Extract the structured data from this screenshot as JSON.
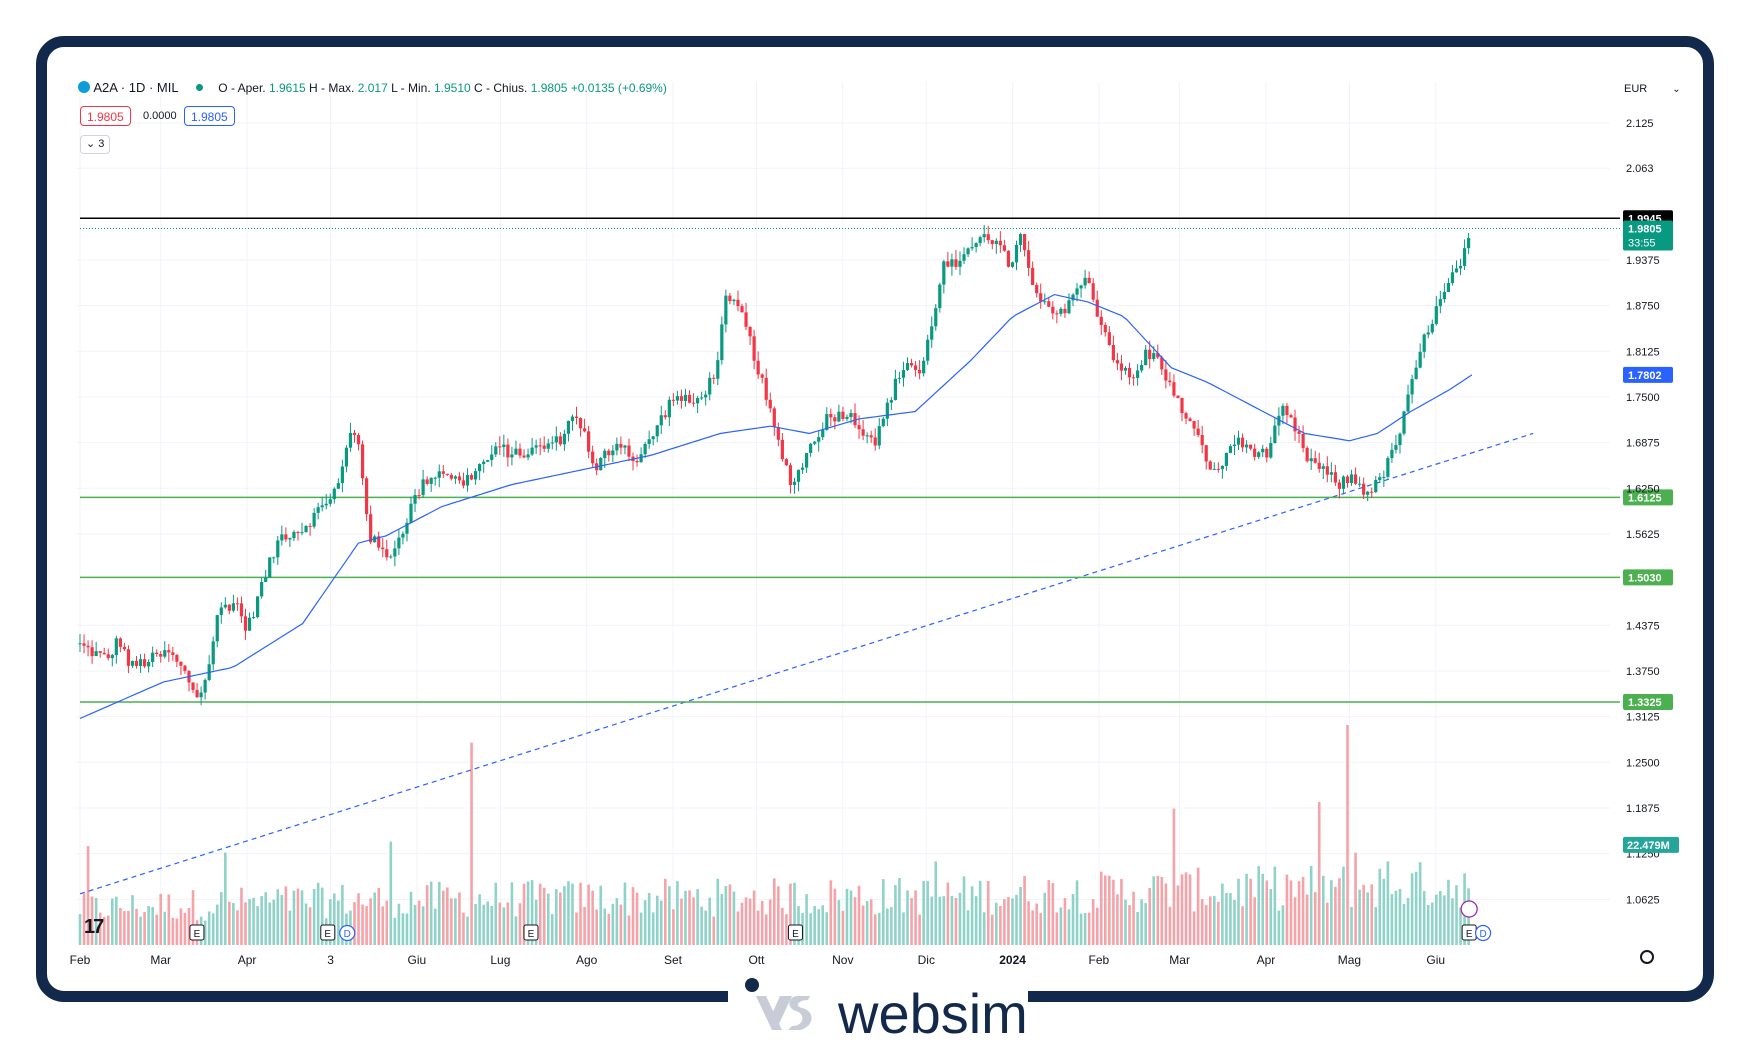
{
  "header": {
    "symbol": "A2A · 1D · MIL",
    "ohlc_prefix_o": "O - Aper.",
    "open": "1.9615",
    "ohlc_prefix_h": "H - Max.",
    "high": "2.017",
    "ohlc_prefix_l": "L - Min.",
    "low": "1.9510",
    "ohlc_prefix_c": "C - Chius.",
    "close": "1.9805",
    "change": "+0.0135 (+0.69%)",
    "bid": "1.9805",
    "spread": "0.0000",
    "ask": "1.9805",
    "indicators_count": "3",
    "currency": "EUR"
  },
  "brand": {
    "name": "websim"
  },
  "chart_data": {
    "type": "candlestick",
    "symbol": "A2A",
    "timeframe": "1D",
    "currency": "EUR",
    "ylim": [
      1.0,
      2.17
    ],
    "y_ticks": [
      "2.125",
      "2.063",
      "1.9375",
      "1.8750",
      "1.8125",
      "1.7500",
      "1.6875",
      "1.6250",
      "1.5625",
      "1.4375",
      "1.3750",
      "1.3125",
      "1.2500",
      "1.1875",
      "1.1250",
      "1.0625"
    ],
    "x_labels": [
      {
        "label": "Feb",
        "day": 0,
        "bold": false
      },
      {
        "label": "Mar",
        "day": 29,
        "bold": false
      },
      {
        "label": "Apr",
        "day": 60,
        "bold": false
      },
      {
        "label": "3",
        "day": 90,
        "bold": false
      },
      {
        "label": "Giu",
        "day": 121,
        "bold": false
      },
      {
        "label": "Lug",
        "day": 151,
        "bold": false
      },
      {
        "label": "Ago",
        "day": 182,
        "bold": false
      },
      {
        "label": "Set",
        "day": 213,
        "bold": false
      },
      {
        "label": "Ott",
        "day": 243,
        "bold": false
      },
      {
        "label": "Nov",
        "day": 274,
        "bold": false
      },
      {
        "label": "Dic",
        "day": 304,
        "bold": false
      },
      {
        "label": "2024",
        "day": 335,
        "bold": true
      },
      {
        "label": "Feb",
        "day": 366,
        "bold": false
      },
      {
        "label": "Mar",
        "day": 395,
        "bold": false
      },
      {
        "label": "Apr",
        "day": 426,
        "bold": false
      },
      {
        "label": "Mag",
        "day": 456,
        "bold": false
      },
      {
        "label": "Giu",
        "day": 487,
        "bold": false
      }
    ],
    "price_path": [
      [
        0,
        1.41
      ],
      [
        10,
        1.39
      ],
      [
        14,
        1.42
      ],
      [
        18,
        1.38
      ],
      [
        25,
        1.39
      ],
      [
        32,
        1.4
      ],
      [
        38,
        1.37
      ],
      [
        42,
        1.34
      ],
      [
        45,
        1.36
      ],
      [
        50,
        1.46
      ],
      [
        56,
        1.47
      ],
      [
        60,
        1.43
      ],
      [
        66,
        1.5
      ],
      [
        72,
        1.56
      ],
      [
        80,
        1.57
      ],
      [
        87,
        1.6
      ],
      [
        93,
        1.63
      ],
      [
        97,
        1.7
      ],
      [
        100,
        1.69
      ],
      [
        104,
        1.56
      ],
      [
        110,
        1.53
      ],
      [
        114,
        1.55
      ],
      [
        120,
        1.61
      ],
      [
        125,
        1.64
      ],
      [
        131,
        1.65
      ],
      [
        137,
        1.63
      ],
      [
        145,
        1.66
      ],
      [
        151,
        1.68
      ],
      [
        157,
        1.67
      ],
      [
        165,
        1.68
      ],
      [
        172,
        1.69
      ],
      [
        178,
        1.73
      ],
      [
        182,
        1.69
      ],
      [
        185,
        1.64
      ],
      [
        188,
        1.67
      ],
      [
        194,
        1.69
      ],
      [
        200,
        1.66
      ],
      [
        206,
        1.7
      ],
      [
        213,
        1.75
      ],
      [
        221,
        1.74
      ],
      [
        228,
        1.78
      ],
      [
        232,
        1.88
      ],
      [
        237,
        1.87
      ],
      [
        242,
        1.81
      ],
      [
        247,
        1.74
      ],
      [
        252,
        1.67
      ],
      [
        256,
        1.63
      ],
      [
        262,
        1.68
      ],
      [
        268,
        1.72
      ],
      [
        275,
        1.73
      ],
      [
        280,
        1.71
      ],
      [
        286,
        1.69
      ],
      [
        292,
        1.76
      ],
      [
        297,
        1.8
      ],
      [
        302,
        1.78
      ],
      [
        306,
        1.85
      ],
      [
        310,
        1.93
      ],
      [
        316,
        1.93
      ],
      [
        320,
        1.95
      ],
      [
        324,
        1.98
      ],
      [
        329,
        1.96
      ],
      [
        334,
        1.93
      ],
      [
        338,
        1.97
      ],
      [
        342,
        1.9
      ],
      [
        347,
        1.87
      ],
      [
        352,
        1.86
      ],
      [
        356,
        1.89
      ],
      [
        362,
        1.91
      ],
      [
        366,
        1.86
      ],
      [
        372,
        1.8
      ],
      [
        378,
        1.77
      ],
      [
        383,
        1.81
      ],
      [
        388,
        1.8
      ],
      [
        393,
        1.75
      ],
      [
        398,
        1.72
      ],
      [
        403,
        1.68
      ],
      [
        408,
        1.64
      ],
      [
        414,
        1.69
      ],
      [
        420,
        1.68
      ],
      [
        426,
        1.67
      ],
      [
        432,
        1.73
      ],
      [
        436,
        1.71
      ],
      [
        440,
        1.67
      ],
      [
        446,
        1.65
      ],
      [
        452,
        1.63
      ],
      [
        457,
        1.64
      ],
      [
        462,
        1.62
      ],
      [
        466,
        1.63
      ],
      [
        470,
        1.66
      ],
      [
        474,
        1.7
      ],
      [
        478,
        1.76
      ],
      [
        482,
        1.82
      ],
      [
        486,
        1.86
      ],
      [
        490,
        1.89
      ],
      [
        494,
        1.92
      ],
      [
        498,
        1.95
      ],
      [
        500,
        1.9805
      ]
    ],
    "ma_path": [
      [
        0,
        1.31
      ],
      [
        30,
        1.36
      ],
      [
        55,
        1.38
      ],
      [
        80,
        1.44
      ],
      [
        100,
        1.55
      ],
      [
        110,
        1.56
      ],
      [
        130,
        1.6
      ],
      [
        155,
        1.63
      ],
      [
        180,
        1.65
      ],
      [
        205,
        1.67
      ],
      [
        230,
        1.7
      ],
      [
        248,
        1.71
      ],
      [
        262,
        1.7
      ],
      [
        280,
        1.72
      ],
      [
        300,
        1.73
      ],
      [
        320,
        1.8
      ],
      [
        335,
        1.86
      ],
      [
        350,
        1.89
      ],
      [
        362,
        1.88
      ],
      [
        375,
        1.86
      ],
      [
        392,
        1.79
      ],
      [
        405,
        1.77
      ],
      [
        420,
        1.74
      ],
      [
        440,
        1.7
      ],
      [
        456,
        1.69
      ],
      [
        466,
        1.7
      ],
      [
        478,
        1.73
      ],
      [
        492,
        1.76
      ],
      [
        500,
        1.7802
      ]
    ],
    "volume_path": [
      [
        0,
        0.18
      ],
      [
        90,
        0.22
      ],
      [
        180,
        0.23
      ],
      [
        300,
        0.24
      ],
      [
        400,
        0.27
      ],
      [
        460,
        0.29
      ],
      [
        500,
        0.3
      ]
    ],
    "volume_spikes": [
      [
        3,
        0.45
      ],
      [
        52,
        0.42
      ],
      [
        112,
        0.47
      ],
      [
        141,
        0.92
      ],
      [
        307,
        0.38
      ],
      [
        393,
        0.62
      ],
      [
        445,
        0.65
      ],
      [
        455,
        1.0
      ],
      [
        458,
        0.42
      ],
      [
        470,
        0.38
      ],
      [
        500,
        0.47
      ]
    ],
    "horizontal_levels": [
      {
        "value": 1.9945,
        "label": "1.9945",
        "color": "#000000"
      },
      {
        "value": 1.6125,
        "label": "1.6125",
        "color": "#4caf50"
      },
      {
        "value": 1.503,
        "label": "1.5030",
        "color": "#4caf50"
      },
      {
        "value": 1.3325,
        "label": "1.3325",
        "color": "#4caf50"
      }
    ],
    "trendline": {
      "from": [
        0,
        1.07
      ],
      "to": [
        522,
        1.7
      ]
    },
    "price_labels": {
      "last_price": "1.9805",
      "countdown": "33:55",
      "ma_value": "1.7802",
      "volume_value": "22.479M"
    },
    "events": [
      {
        "day": 42,
        "kind": "E"
      },
      {
        "day": 89,
        "kind": "E"
      },
      {
        "day": 96,
        "kind": "D"
      },
      {
        "day": 162,
        "kind": "E"
      },
      {
        "day": 257,
        "kind": "E"
      },
      {
        "day": 499,
        "kind": "E"
      },
      {
        "day": 504,
        "kind": "D"
      }
    ],
    "grid": true,
    "colors": {
      "up": "#089981",
      "down": "#f23645",
      "ma": "#2962ff",
      "volume_up": "#8fd3c8",
      "volume_down": "#f5a3a8",
      "level": "#4caf50"
    }
  }
}
